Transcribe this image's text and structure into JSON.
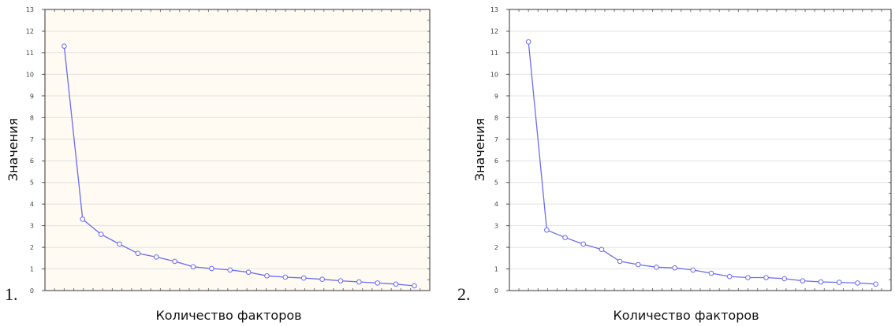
{
  "chart_data": [
    {
      "type": "line",
      "panel_label": "1.",
      "xlabel": "Количество факторов",
      "ylabel": "Значения",
      "ylim": [
        0,
        13
      ],
      "yticks": [
        "0",
        "1",
        "2",
        "3",
        "4",
        "5",
        "6",
        "7",
        "8",
        "9",
        "10",
        "11",
        "12",
        "13"
      ],
      "grid": true,
      "color": "#6a6cf0",
      "x": [
        1,
        2,
        3,
        4,
        5,
        6,
        7,
        8,
        9,
        10,
        11,
        12,
        13,
        14,
        15,
        16,
        17,
        18,
        19,
        20
      ],
      "values": [
        11.3,
        3.3,
        2.6,
        2.15,
        1.72,
        1.55,
        1.35,
        1.1,
        1.02,
        0.95,
        0.85,
        0.68,
        0.62,
        0.58,
        0.52,
        0.45,
        0.4,
        0.35,
        0.3,
        0.22
      ]
    },
    {
      "type": "line",
      "panel_label": "2.",
      "xlabel": "Количество факторов",
      "ylabel": "Значения",
      "ylim": [
        0,
        13
      ],
      "yticks": [
        "0",
        "1",
        "2",
        "3",
        "4",
        "5",
        "6",
        "7",
        "8",
        "9",
        "10",
        "11",
        "12",
        "13"
      ],
      "grid": true,
      "color": "#6a6cf0",
      "x": [
        1,
        2,
        3,
        4,
        5,
        6,
        7,
        8,
        9,
        10,
        11,
        12,
        13,
        14,
        15,
        16,
        17,
        18,
        19,
        20
      ],
      "values": [
        11.5,
        2.8,
        2.45,
        2.15,
        1.9,
        1.35,
        1.2,
        1.08,
        1.05,
        0.95,
        0.8,
        0.65,
        0.6,
        0.6,
        0.55,
        0.45,
        0.4,
        0.38,
        0.35,
        0.3
      ]
    }
  ]
}
